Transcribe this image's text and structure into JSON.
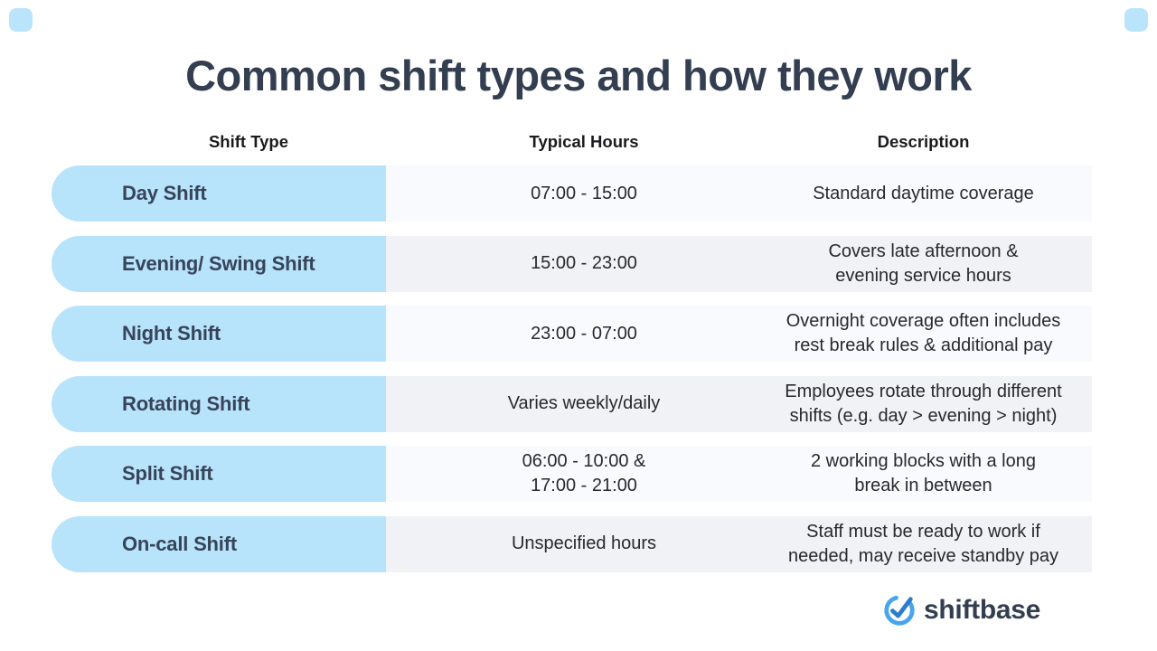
{
  "title": "Common shift types and how they work",
  "table": {
    "headers": [
      "Shift Type",
      "Typical Hours",
      "Description"
    ],
    "rows": [
      {
        "shift_type": "Day Shift",
        "typical_hours": "07:00 - 15:00",
        "description": "Standard daytime coverage"
      },
      {
        "shift_type": "Evening/ Swing Shift",
        "typical_hours": "15:00 - 23:00",
        "description": "Covers late afternoon &\nevening service hours"
      },
      {
        "shift_type": "Night Shift",
        "typical_hours": "23:00 - 07:00",
        "description": "Overnight coverage often includes\nrest break rules & additional pay"
      },
      {
        "shift_type": "Rotating Shift",
        "typical_hours": "Varies weekly/daily",
        "description": "Employees rotate through different\nshifts (e.g. day > evening > night)"
      },
      {
        "shift_type": "Split Shift",
        "typical_hours": "06:00 - 10:00 &\n17:00 - 21:00",
        "description": "2 working blocks with a long\nbreak in between"
      },
      {
        "shift_type": "On-call Shift",
        "typical_hours": "Unspecified hours",
        "description": "Staff must be ready to work if\nneeded, may receive standby pay"
      }
    ]
  },
  "logo": {
    "text": "shiftbase",
    "icon": "check-circle-icon"
  },
  "colors": {
    "title_navy": "#333e50",
    "pill_blue": "#b7e3fb",
    "row_light": "#f9fafd",
    "row_dark": "#f0f2f5",
    "body_text": "#28292d",
    "logo_ring_blue": "#47a5ec",
    "logo_check_blue": "#2e7ccd",
    "corner_accent_blue": "#bae4fc"
  },
  "chart_data": {
    "type": "table",
    "title": "Common shift types and how they work",
    "columns": [
      "Shift Type",
      "Typical Hours",
      "Description"
    ],
    "rows": [
      [
        "Day Shift",
        "07:00 - 15:00",
        "Standard daytime coverage"
      ],
      [
        "Evening/ Swing Shift",
        "15:00 - 23:00",
        "Covers late afternoon & evening service hours"
      ],
      [
        "Night Shift",
        "23:00 - 07:00",
        "Overnight coverage often includes rest break rules & additional pay"
      ],
      [
        "Rotating Shift",
        "Varies weekly/daily",
        "Employees rotate through different shifts (e.g. day > evening > night)"
      ],
      [
        "Split Shift",
        "06:00 - 10:00 & 17:00 - 21:00",
        "2 working blocks with a long break in between"
      ],
      [
        "On-call Shift",
        "Unspecified hours",
        "Staff must be ready to work if needed, may receive standby pay"
      ]
    ],
    "layout_hints": {
      "branding": "shiftbase",
      "first_column_style": "blue-pill",
      "alternating_row_shading": true
    }
  }
}
